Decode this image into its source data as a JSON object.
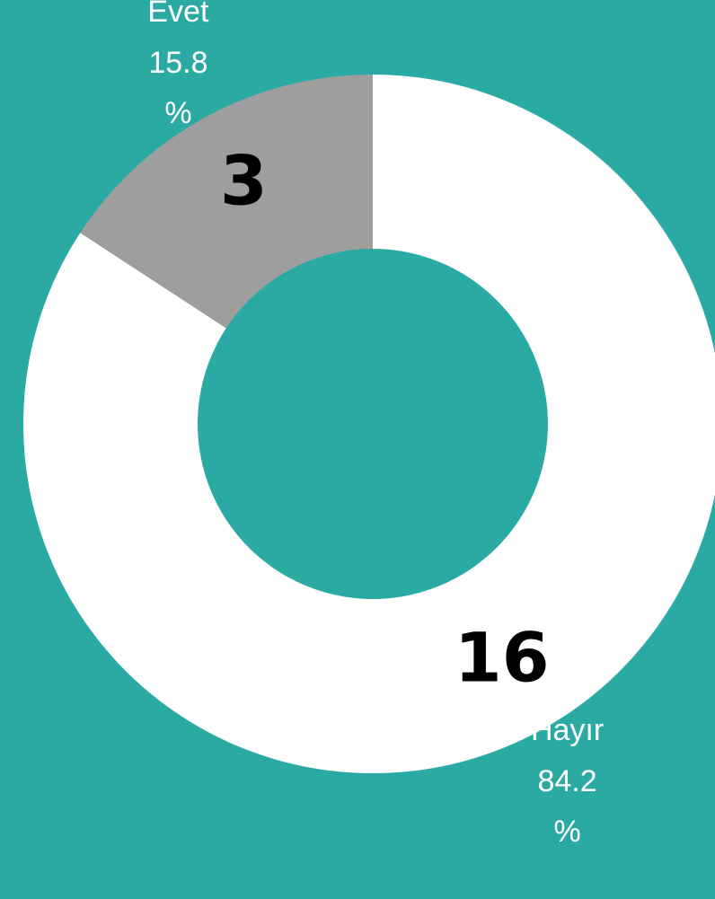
{
  "chart_data": {
    "type": "donut",
    "categories": [
      "Hayır",
      "Evet"
    ],
    "values": [
      16,
      3
    ],
    "colors": [
      "#ffffff",
      "#9e9e9e"
    ],
    "percent_labels": [
      "84.2 %",
      "15.8 %"
    ]
  }
}
